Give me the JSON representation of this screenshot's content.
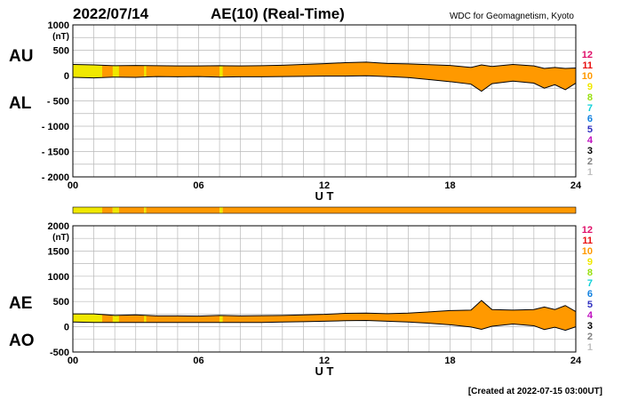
{
  "header": {
    "date": "2022/07/14",
    "title": "AE(10) (Real-Time)",
    "source": "WDC for Geomagnetism, Kyoto",
    "footer": "[Created at 2022-07-15 03:00UT]"
  },
  "legend_numbers": [
    {
      "label": "12",
      "color": "#e0106a"
    },
    {
      "label": "11",
      "color": "#e81010"
    },
    {
      "label": "10",
      "color": "#ff9900"
    },
    {
      "label": "9",
      "color": "#f0e800"
    },
    {
      "label": "8",
      "color": "#99e010"
    },
    {
      "label": "7",
      "color": "#10d0d8"
    },
    {
      "label": "6",
      "color": "#1080e0"
    },
    {
      "label": "5",
      "color": "#3030c0"
    },
    {
      "label": "4",
      "color": "#c010c0"
    },
    {
      "label": "3",
      "color": "#000000"
    },
    {
      "label": "2",
      "color": "#808080"
    },
    {
      "label": "1",
      "color": "#c0c0c0"
    }
  ],
  "station_bar": {
    "colors": {
      "10": "#ff9900",
      "9": "#f0e800"
    },
    "segments": [
      {
        "from": 0.0,
        "to": 1.4,
        "stations": 9
      },
      {
        "from": 1.4,
        "to": 1.9,
        "stations": 10
      },
      {
        "from": 1.9,
        "to": 2.2,
        "stations": 9
      },
      {
        "from": 2.2,
        "to": 3.4,
        "stations": 10
      },
      {
        "from": 3.4,
        "to": 3.5,
        "stations": 9
      },
      {
        "from": 3.5,
        "to": 7.0,
        "stations": 10
      },
      {
        "from": 7.0,
        "to": 7.15,
        "stations": 9
      },
      {
        "from": 7.15,
        "to": 24.0,
        "stations": 10
      }
    ]
  },
  "chart_data": [
    {
      "type": "area",
      "name": "AU/AL",
      "series_labels": [
        "AU",
        "AL"
      ],
      "xlabel": "U T",
      "ylabel": "(nT)",
      "x_ticks": [
        "00",
        "06",
        "12",
        "18",
        "24"
      ],
      "ylim": [
        -2000,
        1000
      ],
      "y_ticks": [
        "1000",
        "500",
        "0",
        "- 500",
        "- 1000",
        "- 1500",
        "- 2000"
      ],
      "grid": true,
      "x_hours": [
        0,
        1,
        2,
        3,
        4,
        5,
        6,
        7,
        8,
        9,
        10,
        11,
        12,
        13,
        14,
        15,
        16,
        17,
        18,
        19,
        19.5,
        20,
        21,
        22,
        22.5,
        23,
        23.5,
        24
      ],
      "AU": [
        220,
        210,
        195,
        200,
        195,
        190,
        190,
        195,
        190,
        195,
        205,
        220,
        235,
        255,
        265,
        240,
        230,
        215,
        200,
        160,
        210,
        180,
        220,
        190,
        140,
        160,
        140,
        150
      ],
      "AL": [
        -35,
        -45,
        -30,
        -35,
        -20,
        -25,
        -20,
        -30,
        -25,
        -25,
        -20,
        -15,
        -10,
        -10,
        -5,
        -20,
        -40,
        -80,
        -120,
        -170,
        -310,
        -160,
        -110,
        -150,
        -250,
        -180,
        -280,
        -150
      ]
    },
    {
      "type": "area",
      "name": "AE/AO",
      "series_labels": [
        "AE",
        "AO"
      ],
      "xlabel": "U T",
      "ylabel": "(nT)",
      "x_ticks": [
        "00",
        "06",
        "12",
        "18",
        "24"
      ],
      "ylim": [
        -500,
        2000
      ],
      "y_ticks": [
        "2000",
        "1500",
        "1000",
        "500",
        "0",
        "-500"
      ],
      "grid": true,
      "x_hours": [
        0,
        1,
        2,
        3,
        4,
        5,
        6,
        7,
        8,
        9,
        10,
        11,
        12,
        13,
        14,
        15,
        16,
        17,
        18,
        19,
        19.5,
        20,
        21,
        22,
        22.5,
        23,
        23.5,
        24
      ],
      "AE": [
        255,
        255,
        225,
        235,
        215,
        215,
        210,
        225,
        215,
        220,
        225,
        235,
        245,
        265,
        270,
        260,
        270,
        295,
        320,
        330,
        520,
        340,
        330,
        340,
        390,
        340,
        420,
        300
      ],
      "AO": [
        95,
        85,
        85,
        85,
        85,
        85,
        85,
        85,
        85,
        85,
        95,
        100,
        110,
        120,
        125,
        110,
        95,
        70,
        40,
        -5,
        -50,
        10,
        55,
        20,
        -55,
        -10,
        -70,
        0
      ]
    }
  ]
}
